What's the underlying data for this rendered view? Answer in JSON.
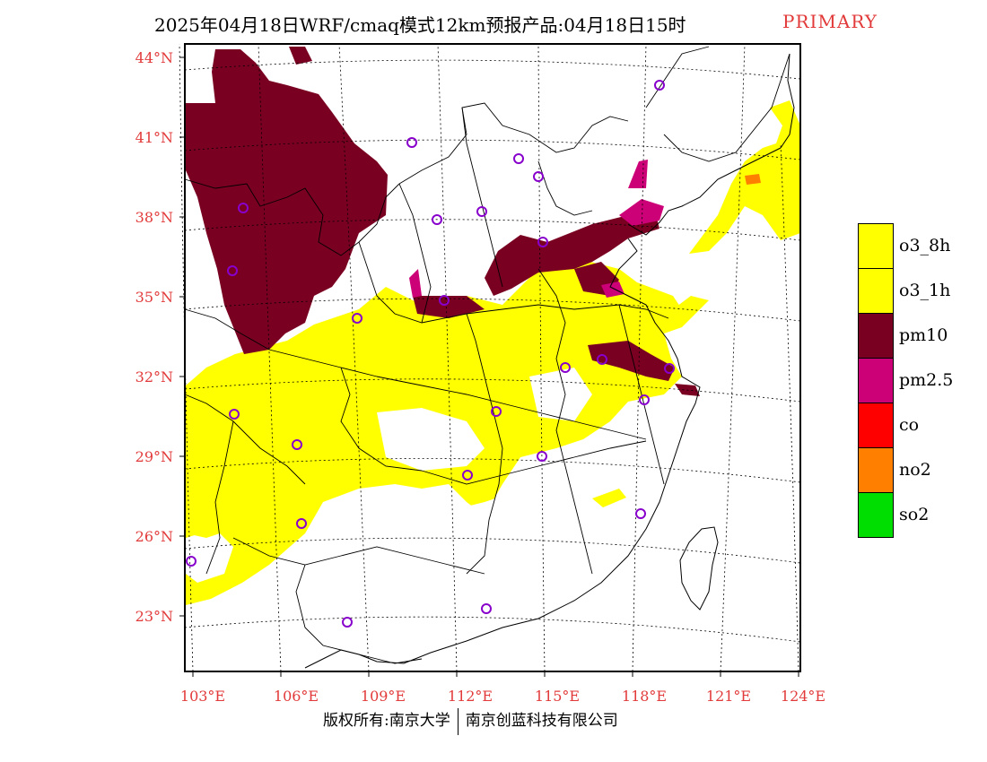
{
  "title": {
    "main": "2025年04月18日WRF/cmaq模式12km预报产品:04月18日15时",
    "tag": "PRIMARY"
  },
  "axes": {
    "lat_ticks": [
      "44°N",
      "41°N",
      "38°N",
      "35°N",
      "32°N",
      "29°N",
      "26°N",
      "23°N"
    ],
    "lon_ticks": [
      "103°E",
      "106°E",
      "109°E",
      "112°E",
      "115°E",
      "118°E",
      "121°E",
      "124°E"
    ]
  },
  "legend": [
    {
      "label": "o3_8h",
      "color": "#ffff00"
    },
    {
      "label": "o3_1h",
      "color": "#ffff00"
    },
    {
      "label": "pm10",
      "color": "#7a0022"
    },
    {
      "label": "pm2.5",
      "color": "#cc0077"
    },
    {
      "label": "co",
      "color": "#ff0000"
    },
    {
      "label": "no2",
      "color": "#ff7f00"
    },
    {
      "label": "so2",
      "color": "#00dd00"
    }
  ],
  "footer": {
    "left": "版权所有:南京大学",
    "right": "南京创蓝科技有限公司"
  },
  "colors": {
    "o3": "#ffff00",
    "pm10": "#7a0022",
    "pm25": "#cc0077",
    "no2": "#ff7f00",
    "station": "#8800cc",
    "tick": "#e23a3a"
  }
}
